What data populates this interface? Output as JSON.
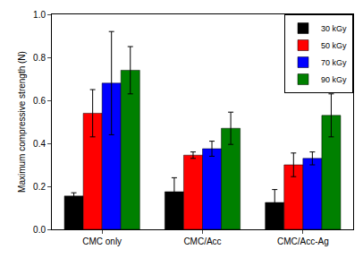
{
  "chart_data": {
    "type": "bar",
    "y_label": "Maximum compressive strength (N)",
    "categories": [
      "CMC only",
      "CMC/Acc",
      "CMC/Acc-Ag"
    ],
    "series": [
      {
        "name": "30 kGy",
        "color": "#000000",
        "values": [
          0.155,
          0.175,
          0.125
        ],
        "errors": [
          0.015,
          0.065,
          0.06
        ]
      },
      {
        "name": "50 kGy",
        "color": "#ff0000",
        "values": [
          0.54,
          0.345,
          0.3
        ],
        "errors": [
          0.11,
          0.015,
          0.055
        ]
      },
      {
        "name": "70 kGy",
        "color": "#0000ff",
        "values": [
          0.68,
          0.375,
          0.33
        ],
        "errors": [
          0.24,
          0.035,
          0.03
        ]
      },
      {
        "name": "90 kGy",
        "color": "#008000",
        "values": [
          0.74,
          0.47,
          0.53
        ],
        "errors": [
          0.11,
          0.075,
          0.1
        ]
      }
    ],
    "ylim": [
      0,
      1.0
    ],
    "yticks": [
      {
        "value": 0,
        "label": "0.0"
      },
      0.2,
      0.4,
      0.6,
      0.8,
      {
        "value": 1.0,
        "label": "1.0"
      }
    ],
    "legend": "upper right",
    "grid": false
  }
}
